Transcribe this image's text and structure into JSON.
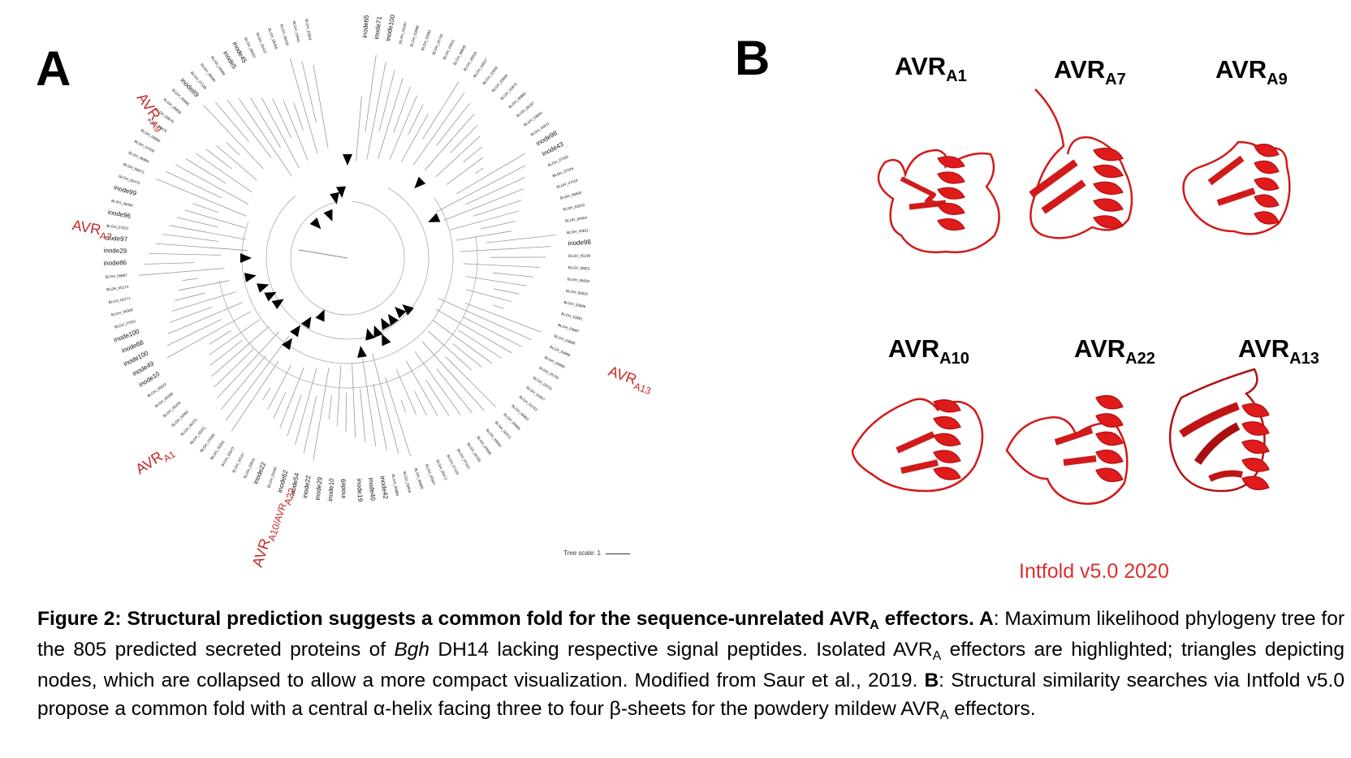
{
  "panelA": {
    "letter": "A",
    "avr_labels": [
      {
        "main": "AVR",
        "sub": "A9"
      },
      {
        "main": "AVR",
        "sub": "A7"
      },
      {
        "main": "AVR",
        "sub": "A13"
      },
      {
        "main": "AVR",
        "sub": "A1"
      },
      {
        "main": "AVR",
        "sub": "A10/AVR",
        "sub2": "A22"
      }
    ],
    "tree_scale": "Tree scale: 1",
    "leaves": [
      "inode65",
      "inode71",
      "inode100",
      "BLGH_02000",
      "BLGH_02888",
      "BLGH_02891",
      "BLGH_05799",
      "BLGH_03631",
      "BLGH_06848",
      "BLGH_05826",
      "BLGH_03827",
      "BLGH_03666",
      "BLGH_03689",
      "BLGH_05879",
      "BLGH_05882",
      "BLGH_06187",
      "BLGH_03840",
      "BLGH_06011",
      "inode98",
      "inode43",
      "BLGH_07030",
      "BLGH_07016",
      "BLGH_07019",
      "BLGH_06630",
      "BLGH_02810",
      "BLGH_04904",
      "BLGH_00811",
      "inode98",
      "BLGH_05196",
      "BLGH_06811",
      "BLGH_06828",
      "BLGH_00029",
      "BLGH_03686",
      "BLGH_03891",
      "BLGH_03887",
      "BLGH_03888",
      "BLGH_03896",
      "BLGH_03899",
      "BLGH_03700",
      "BLGH_03701",
      "BLGH_03007",
      "BLGH_03753",
      "BLGH_06862",
      "BLGH_06905",
      "BLGH_02072",
      "BLGH_03064",
      "BLGH_03098",
      "BLGH_02100",
      "BLGH_07103",
      "BLGH_07105",
      "BLGH_06672",
      "BLGH_06887",
      "BLGH_06885",
      "BLGH_06806",
      "BLGH_06889",
      "inode42",
      "inode40",
      "inode19",
      "inode9",
      "inode10",
      "inode29",
      "inode22",
      "inode54",
      "inode62",
      "BLGH_03180",
      "inode22",
      "BLGH_03091",
      "BLGH_03167",
      "BLGH_05873",
      "BLGH_05262",
      "BLGH_03386",
      "BLGH_03251",
      "BLGH_06231",
      "BLGH_02862",
      "BLGH_05299",
      "BLGH_05388",
      "BLGH_05822",
      "inode10",
      "inode49",
      "inode100",
      "inode68",
      "inode100",
      "BLGH_07021",
      "BLGH_06309",
      "BLGH_02171",
      "BLGH_05173",
      "BLGH_00667",
      "inode86",
      "inode29",
      "inode97",
      "BLGH_07021",
      "inode96",
      "BLGH_06066",
      "inode99",
      "BLGH_06475",
      "BLGH_06873",
      "BLGH_06889",
      "BLGH_07009",
      "BLGH_06880",
      "BLGH_06875",
      "BLGH_00879",
      "BLGH_06856",
      "BLGH_05885",
      "inode89",
      "BLGH_07189",
      "BLGH_06085",
      "BLGH_04989",
      "inode5",
      "inode45",
      "BLGH_06522",
      "BLGH_06411",
      "BLGH_06408",
      "BLGH_06426",
      "BLGH_03441",
      "BLGH_03811"
    ]
  },
  "panelB": {
    "letter": "B",
    "structures": [
      {
        "main": "AVR",
        "sub": "A1"
      },
      {
        "main": "AVR",
        "sub": "A7"
      },
      {
        "main": "AVR",
        "sub": "A9"
      },
      {
        "main": "AVR",
        "sub": "A10"
      },
      {
        "main": "AVR",
        "sub": "A22"
      },
      {
        "main": "AVR",
        "sub": "A13"
      }
    ],
    "software_label": "Intfold v5.0 2020"
  },
  "caption": {
    "title_a": "Figure 2: Structural prediction suggests a common fold for the sequence-unrelated AVR",
    "title_sub": "A",
    "title_b": " effectors. ",
    "a_label": "A",
    "a_text_1": ": Maximum likelihood phylogeny tree for the 805 predicted secreted proteins of ",
    "a_italic": "Bgh",
    "a_text_2": " DH14 lacking respective signal peptides. Isolated AVR",
    "a_sub": "A",
    "a_text_3": " effectors are highlighted; triangles depicting nodes, which are collapsed to allow a more compact visualization. Modified from Saur et al., 2019. ",
    "b_label": "B",
    "b_text_1": ": Structural similarity searches via Intfold v5.0 propose a common fold with a central α-helix facing three to four β-sheets for the powdery mildew AVR",
    "b_sub": "A",
    "b_text_2": " effectors."
  },
  "colors": {
    "accent_red": "#c62828",
    "helix_red": "#e01b1b",
    "text": "#000000"
  }
}
